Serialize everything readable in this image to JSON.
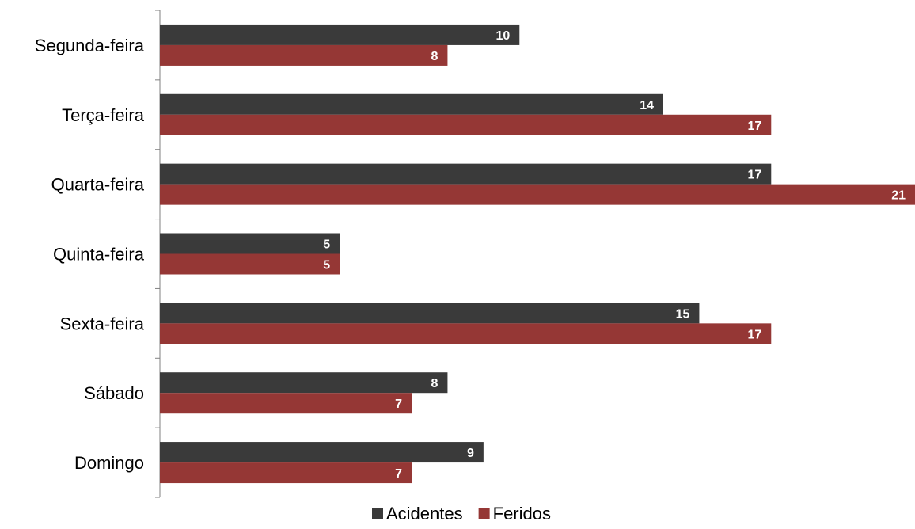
{
  "chart_data": {
    "type": "bar",
    "orientation": "horizontal",
    "categories": [
      "Segunda-feira",
      "Terça-feira",
      "Quarta-feira",
      "Quinta-feira",
      "Sexta-feira",
      "Sábado",
      "Domingo"
    ],
    "series": [
      {
        "name": "Acidentes",
        "color": "#3a3a3a",
        "values": [
          10,
          14,
          17,
          5,
          15,
          8,
          9
        ]
      },
      {
        "name": "Feridos",
        "color": "#953735",
        "values": [
          8,
          17,
          21,
          5,
          17,
          7,
          7
        ]
      }
    ],
    "xlim": [
      0,
      21
    ],
    "grid": false,
    "legend_position": "bottom",
    "data_labels": true
  }
}
